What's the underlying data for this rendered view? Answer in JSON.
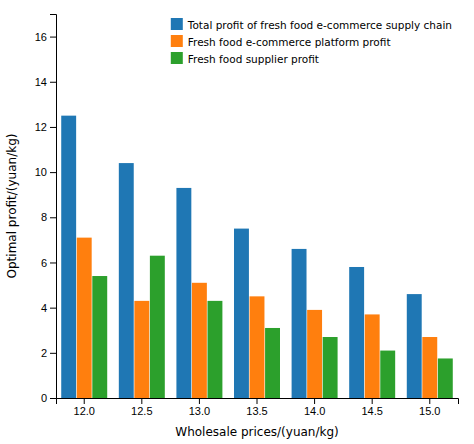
{
  "chart_data": {
    "type": "bar",
    "categories": [
      "12.0",
      "12.5",
      "13.0",
      "13.5",
      "14.0",
      "14.5",
      "15.0"
    ],
    "series": [
      {
        "name": "Total profit of fresh food e-commerce supply chain",
        "values": [
          12.5,
          10.4,
          9.3,
          7.5,
          6.6,
          5.8,
          4.6
        ]
      },
      {
        "name": "Fresh food e-commerce platform profit",
        "values": [
          7.1,
          4.3,
          5.1,
          4.5,
          3.9,
          3.7,
          2.7
        ]
      },
      {
        "name": "Fresh food supplier profit",
        "values": [
          5.4,
          6.3,
          4.3,
          3.1,
          2.7,
          2.1,
          1.75
        ]
      }
    ],
    "xlabel": "Wholesale prices/(yuan/kg)",
    "ylabel": "Optimal profit/(yuan/kg)",
    "ylim": [
      0,
      17
    ],
    "yticks": [
      0,
      2,
      4,
      6,
      8,
      10,
      12,
      14,
      16
    ],
    "grid": false,
    "legend": "top-right"
  }
}
